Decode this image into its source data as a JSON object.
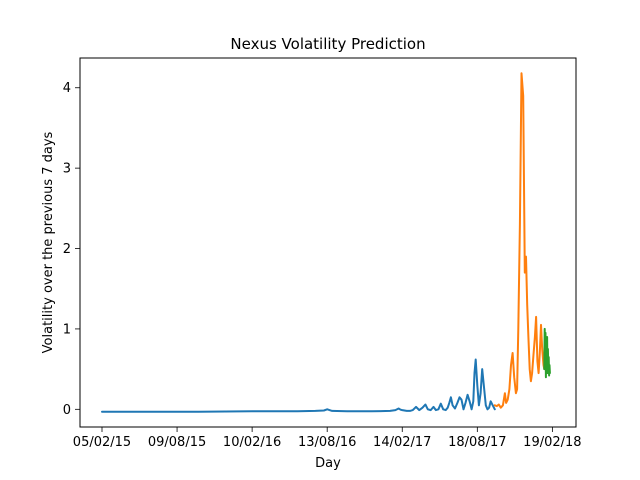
{
  "chart_data": {
    "type": "line",
    "title": "Nexus Volatility Prediction",
    "xlabel": "Day",
    "ylabel": "Volatility over the previous 7 days",
    "x_date_format": "DD/MM/YY",
    "xlim": [
      "2015-02-05",
      "2018-02-23"
    ],
    "ylim": [
      -0.22,
      4.37
    ],
    "grid": false,
    "legend": "none",
    "x_ticks": [
      {
        "date": "2015-02-05",
        "label": "05/02/15"
      },
      {
        "date": "2015-08-09",
        "label": "09/08/15"
      },
      {
        "date": "2016-02-10",
        "label": "10/02/16"
      },
      {
        "date": "2016-08-13",
        "label": "13/08/16"
      },
      {
        "date": "2017-02-14",
        "label": "14/02/17"
      },
      {
        "date": "2017-08-18",
        "label": "18/08/17"
      },
      {
        "date": "2018-02-19",
        "label": "19/02/18"
      }
    ],
    "y_ticks": [
      0,
      1,
      2,
      3,
      4
    ],
    "series": [
      {
        "color": "#1f77b4",
        "x": [
          "2015-02-05",
          "2015-06-01",
          "2015-10-01",
          "2016-02-10",
          "2016-06-01",
          "2016-07-15",
          "2016-08-05",
          "2016-08-13",
          "2016-08-25",
          "2016-10-01",
          "2016-12-01",
          "2017-01-15",
          "2017-01-28",
          "2017-02-05",
          "2017-02-10",
          "2017-02-14",
          "2017-02-25",
          "2017-03-05",
          "2017-03-12",
          "2017-03-20",
          "2017-03-28",
          "2017-04-05",
          "2017-04-12",
          "2017-04-18",
          "2017-04-25",
          "2017-05-02",
          "2017-05-08",
          "2017-05-14",
          "2017-05-20",
          "2017-05-26",
          "2017-06-01",
          "2017-06-06",
          "2017-06-10",
          "2017-06-14",
          "2017-06-18",
          "2017-06-24",
          "2017-06-30",
          "2017-07-05",
          "2017-07-10",
          "2017-07-15",
          "2017-07-20",
          "2017-07-25",
          "2017-07-30",
          "2017-08-04",
          "2017-08-08",
          "2017-08-11",
          "2017-08-14",
          "2017-08-18",
          "2017-08-22",
          "2017-08-26",
          "2017-08-30",
          "2017-09-04",
          "2017-09-08",
          "2017-09-12",
          "2017-09-16",
          "2017-09-20",
          "2017-09-25",
          "2017-09-30"
        ],
        "y": [
          -0.03,
          -0.03,
          -0.03,
          -0.025,
          -0.025,
          -0.02,
          -0.015,
          0.0,
          -0.02,
          -0.025,
          -0.025,
          -0.02,
          -0.01,
          0.01,
          -0.005,
          -0.01,
          -0.02,
          -0.02,
          -0.01,
          0.03,
          -0.01,
          0.02,
          0.06,
          0.0,
          -0.01,
          0.03,
          -0.01,
          0.0,
          0.07,
          0.0,
          -0.01,
          0.02,
          0.08,
          0.15,
          0.05,
          0.01,
          0.08,
          0.15,
          0.12,
          0.0,
          0.08,
          0.18,
          0.1,
          0.0,
          0.1,
          0.45,
          0.62,
          0.3,
          0.05,
          0.2,
          0.5,
          0.25,
          0.05,
          0.0,
          0.02,
          0.1,
          0.05,
          0.0
        ]
      },
      {
        "color": "#ff7f0e",
        "x": [
          "2017-09-30",
          "2017-10-05",
          "2017-10-10",
          "2017-10-15",
          "2017-10-20",
          "2017-10-25",
          "2017-10-28",
          "2017-11-01",
          "2017-11-05",
          "2017-11-09",
          "2017-11-13",
          "2017-11-17",
          "2017-11-21",
          "2017-11-24",
          "2017-11-27",
          "2017-12-01",
          "2017-12-05",
          "2017-12-09",
          "2017-12-13",
          "2017-12-16",
          "2017-12-19",
          "2017-12-22",
          "2017-12-25",
          "2017-12-28",
          "2017-12-31",
          "2018-01-03",
          "2018-01-07",
          "2018-01-10",
          "2018-01-13",
          "2018-01-16",
          "2018-01-19",
          "2018-01-22",
          "2018-01-25",
          "2018-01-28",
          "2018-01-30"
        ],
        "y": [
          0.05,
          0.04,
          0.06,
          0.02,
          0.05,
          0.2,
          0.08,
          0.12,
          0.25,
          0.55,
          0.7,
          0.4,
          0.2,
          0.25,
          1.0,
          2.3,
          4.18,
          3.9,
          1.7,
          1.9,
          1.3,
          0.9,
          0.5,
          0.35,
          0.45,
          0.65,
          0.9,
          1.15,
          0.6,
          0.45,
          0.7,
          1.05,
          0.75,
          0.55,
          0.5
        ]
      },
      {
        "color": "#2ca02c",
        "x": [
          "2018-01-30",
          "2018-01-31",
          "2018-02-01",
          "2018-02-02",
          "2018-02-03",
          "2018-02-04",
          "2018-02-05",
          "2018-02-06",
          "2018-02-07",
          "2018-02-08",
          "2018-02-09",
          "2018-02-10",
          "2018-02-11",
          "2018-02-12",
          "2018-02-13"
        ],
        "y": [
          0.5,
          1.0,
          0.6,
          0.95,
          0.4,
          0.85,
          0.55,
          0.9,
          0.45,
          0.75,
          0.5,
          0.65,
          0.42,
          0.55,
          0.45
        ]
      }
    ]
  }
}
